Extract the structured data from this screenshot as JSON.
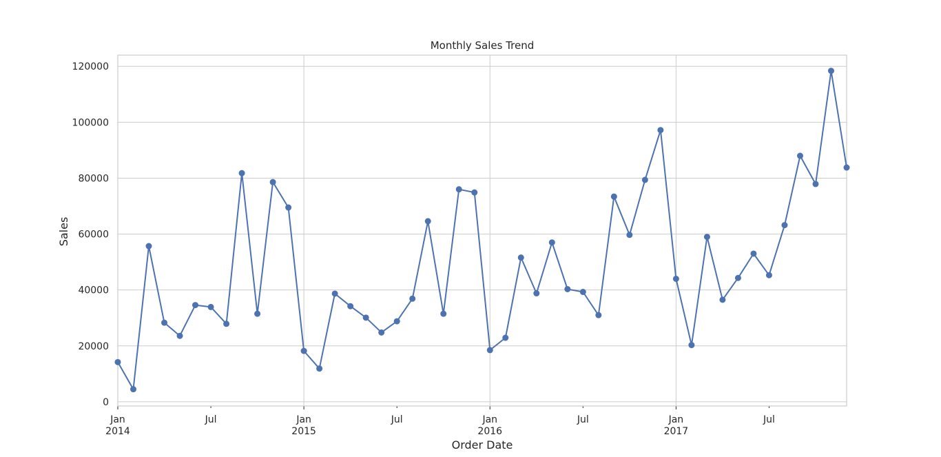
{
  "chart_data": {
    "type": "line",
    "title": "Monthly Sales Trend",
    "xlabel": "Order Date",
    "ylabel": "Sales",
    "ylim": [
      -1500,
      124000
    ],
    "yticks": [
      0,
      20000,
      40000,
      60000,
      80000,
      100000,
      120000
    ],
    "xlim": [
      "2014-01",
      "2017-12"
    ],
    "xticks": [
      {
        "month": "2014-01",
        "label": "Jan",
        "year": "2014",
        "major": true
      },
      {
        "month": "2014-07",
        "label": "Jul",
        "year": "",
        "major": false
      },
      {
        "month": "2015-01",
        "label": "Jan",
        "year": "2015",
        "major": true
      },
      {
        "month": "2015-07",
        "label": "Jul",
        "year": "",
        "major": false
      },
      {
        "month": "2016-01",
        "label": "Jan",
        "year": "2016",
        "major": true
      },
      {
        "month": "2016-07",
        "label": "Jul",
        "year": "",
        "major": false
      },
      {
        "month": "2017-01",
        "label": "Jan",
        "year": "2017",
        "major": true
      },
      {
        "month": "2017-07",
        "label": "Jul",
        "year": "",
        "major": false
      }
    ],
    "grid": true,
    "color": "#4c72b0",
    "x": [
      "2014-01",
      "2014-02",
      "2014-03",
      "2014-04",
      "2014-05",
      "2014-06",
      "2014-07",
      "2014-08",
      "2014-09",
      "2014-10",
      "2014-11",
      "2014-12",
      "2015-01",
      "2015-02",
      "2015-03",
      "2015-04",
      "2015-05",
      "2015-06",
      "2015-07",
      "2015-08",
      "2015-09",
      "2015-10",
      "2015-11",
      "2015-12",
      "2016-01",
      "2016-02",
      "2016-03",
      "2016-04",
      "2016-05",
      "2016-06",
      "2016-07",
      "2016-08",
      "2016-09",
      "2016-10",
      "2016-11",
      "2016-12",
      "2017-01",
      "2017-02",
      "2017-03",
      "2017-04",
      "2017-05",
      "2017-06",
      "2017-07",
      "2017-08",
      "2017-09",
      "2017-10",
      "2017-11",
      "2017-12"
    ],
    "values": [
      14200,
      4500,
      55700,
      28300,
      23600,
      34600,
      33900,
      27900,
      81800,
      31500,
      78600,
      69500,
      18200,
      11900,
      38700,
      34200,
      30100,
      24800,
      28800,
      36900,
      64600,
      31500,
      76000,
      74900,
      18500,
      22900,
      51600,
      38800,
      57000,
      40300,
      39300,
      31000,
      73400,
      59700,
      79400,
      97200,
      44000,
      20300,
      59000,
      36500,
      44300,
      53000,
      45300,
      63200,
      88000,
      77900,
      118400,
      83800
    ]
  }
}
